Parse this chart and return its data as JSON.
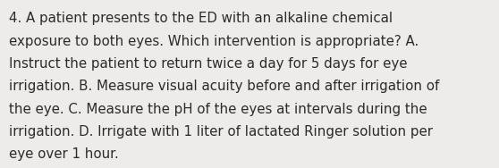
{
  "lines": [
    "4. A patient presents to the ED with an alkaline chemical",
    "exposure to both eyes. Which intervention is appropriate? A.",
    "Instruct the patient to return twice a day for 5 days for eye",
    "irrigation. B. Measure visual acuity before and after irrigation of",
    "the eye. C. Measure the pH of the eyes at intervals during the",
    "irrigation. D. Irrigate with 1 liter of lactated Ringer solution per",
    "eye over 1 hour."
  ],
  "background_color": "#edecea",
  "text_color": "#2b2b2b",
  "font_size": 10.8,
  "font_family": "DejaVu Sans"
}
